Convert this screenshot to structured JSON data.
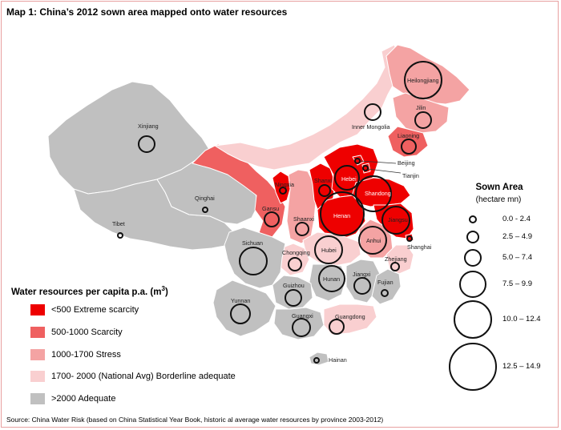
{
  "title": "Map 1: China’s 2012 sown area mapped onto water resources",
  "source": "Source: China Water Risk (based on China Statistical Year Book, historic al average water resources by province 2003-2012)",
  "colors": {
    "extreme": "#ee0000",
    "scarcity": "#ef6060",
    "stress": "#f4a3a3",
    "borderline": "#f9cfd0",
    "adequate": "#c0c0c0",
    "border": "#ffffff",
    "circle": "#111111"
  },
  "legend": {
    "title": "Water resources per capita p.a. (m",
    "title_sup": "3",
    "title_end": ")",
    "items": [
      {
        "label": "<500 Extreme scarcity",
        "color": "#ee0000"
      },
      {
        "label": "500-1000 Scarcity",
        "color": "#ef6060"
      },
      {
        "label": "1000-1700 Stress",
        "color": "#f4a3a3"
      },
      {
        "label": "1700- 2000 (National Avg) Borderline adequate",
        "color": "#f9cfd0"
      },
      {
        "label": ">2000 Adequate",
        "color": "#c0c0c0"
      }
    ]
  },
  "size_legend": {
    "title": "Sown Area",
    "subtitle": "(hectare mn)",
    "items": [
      "0.0 - 2.4",
      "2.5 – 4.9",
      "5.0 – 7.4",
      "7.5 – 9.9",
      "10.0 – 12.4",
      "12.5 – 14.9"
    ]
  },
  "provinces": {
    "heilongjiang": "Heilongjiang",
    "jilin": "Jilin",
    "liaoning": "Liaoning",
    "inner_mongolia": "Inner Mongolia",
    "beijing": "Beijing",
    "tianjin": "Tianjin",
    "hebei": "Hebei",
    "shanxi": "Shanxi",
    "shandong": "Shandong",
    "henan": "Henan",
    "jiangsu": "Jiangsu",
    "anhui": "Anhui",
    "shanghai": "Shanghai",
    "zhejiang": "Zhejiang",
    "ningxia": "Ningxia",
    "gansu": "Gansu",
    "shaanxi": "Shaanxi",
    "xinjiang": "Xinjiang",
    "qinghai": "Qinghai",
    "tibet": "Tibet",
    "sichuan": "Sichuan",
    "chongqing": "Chongqing",
    "hubei": "Hubei",
    "hunan": "Hunan",
    "jiangxi": "Jiangxi",
    "fujian": "Fujian",
    "guizhou": "Guizhou",
    "yunnan": "Yunnan",
    "guangxi": "Guangxi",
    "guangdong": "Guangdong",
    "hainan": "Hainan"
  }
}
